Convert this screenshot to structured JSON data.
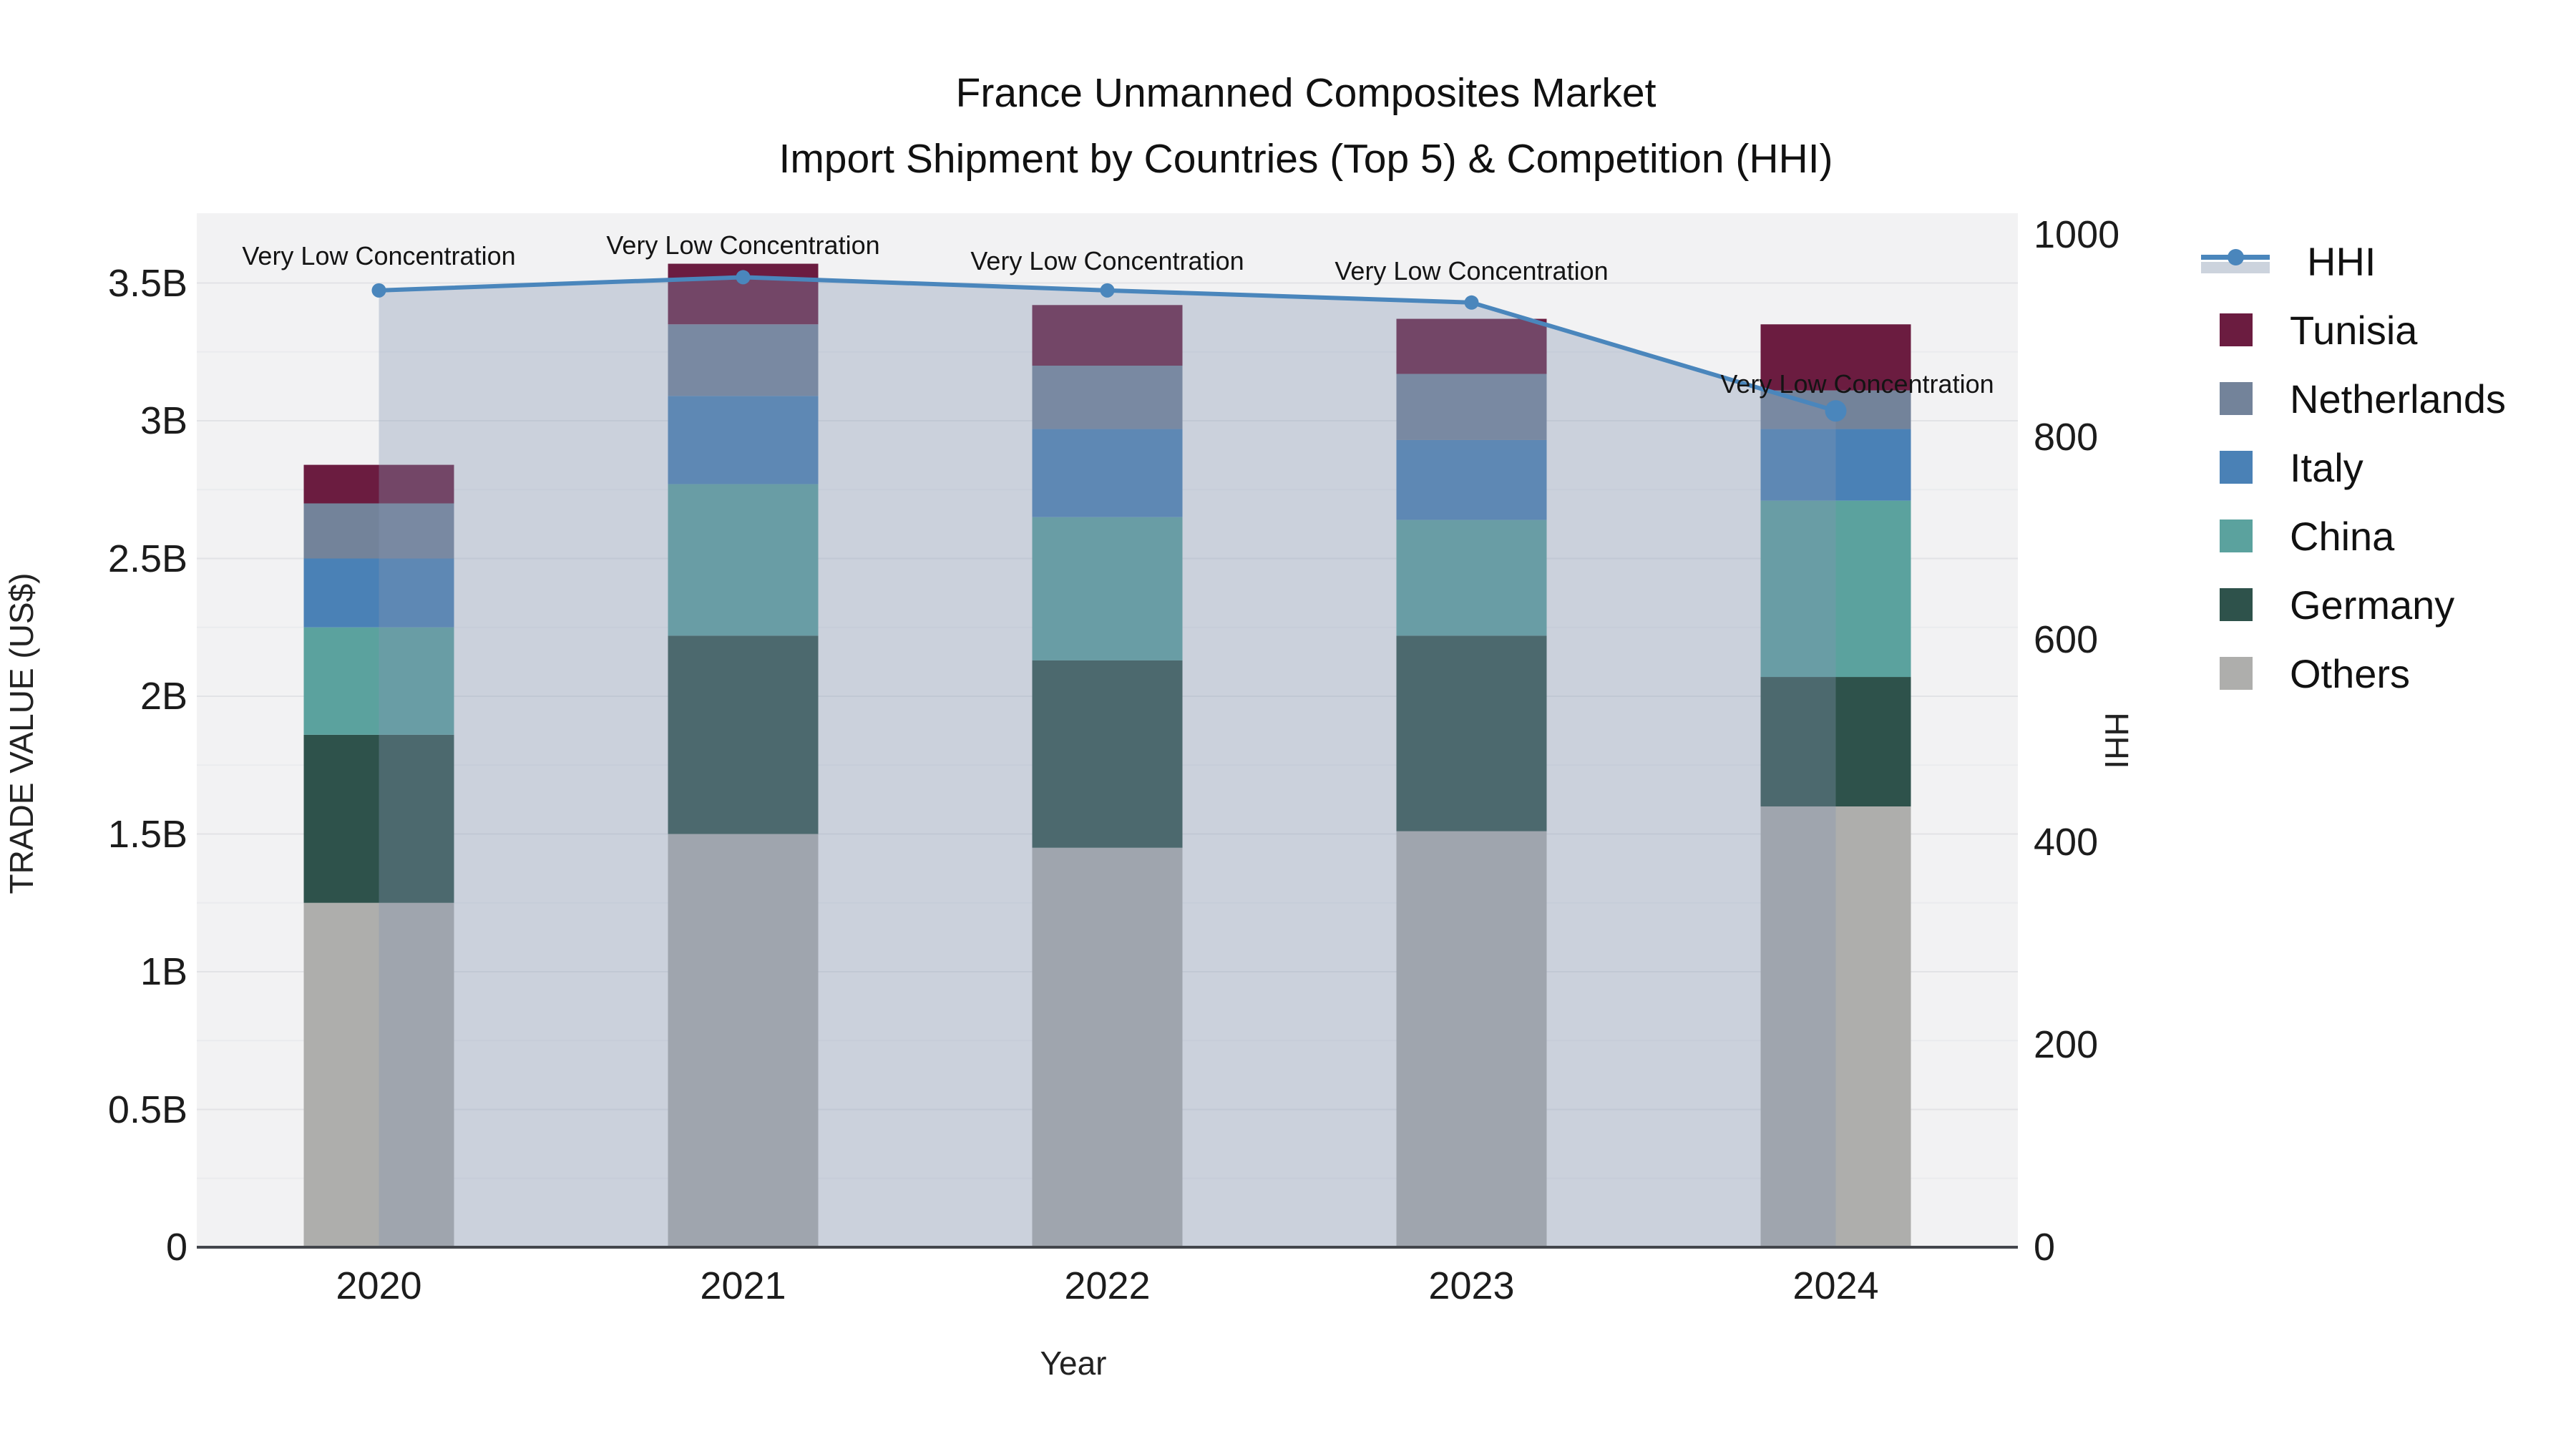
{
  "title": {
    "line1": "France Unmanned Composites Market",
    "line2": "Import Shipment by Countries (Top 5) & Competition (HHI)"
  },
  "axes": {
    "y_left": {
      "title": "TRADE VALUE (US$)",
      "ticks": [
        "0",
        "0.5B",
        "1B",
        "1.5B",
        "2B",
        "2.5B",
        "3B",
        "3.5B"
      ]
    },
    "y_right": {
      "title": "HHI",
      "ticks": [
        "0",
        "200",
        "400",
        "600",
        "800",
        "1000"
      ]
    },
    "x": {
      "title": "Year",
      "ticks": [
        "2020",
        "2021",
        "2022",
        "2023",
        "2024"
      ]
    }
  },
  "legend": {
    "items": [
      {
        "label": "HHI",
        "type": "line",
        "color": "#4a86bc",
        "band_color": "#ccd3dd"
      },
      {
        "label": "Tunisia",
        "type": "swatch",
        "color": "#6b1c40"
      },
      {
        "label": "Netherlands",
        "type": "swatch",
        "color": "#73839a"
      },
      {
        "label": "Italy",
        "type": "swatch",
        "color": "#4a81b6"
      },
      {
        "label": "China",
        "type": "swatch",
        "color": "#5ba29e"
      },
      {
        "label": "Germany",
        "type": "swatch",
        "color": "#2e524b"
      },
      {
        "label": "Others",
        "type": "swatch",
        "color": "#aeaeac"
      }
    ]
  },
  "annotations": [
    {
      "text": "Very Low Concentration"
    },
    {
      "text": "Very Low Concentration"
    },
    {
      "text": "Very Low Concentration"
    },
    {
      "text": "Very Low Concentration"
    },
    {
      "text": "Very Low Concentration"
    }
  ],
  "chart_data": {
    "type": "combo_stacked_bar_line",
    "title": "France Unmanned Composites Market — Import Shipment by Countries (Top 5) & Competition (HHI)",
    "categories": [
      "2020",
      "2021",
      "2022",
      "2023",
      "2024"
    ],
    "unit": "billion US$",
    "series": [
      {
        "name": "Others",
        "color": "#aeaeac",
        "values": [
          1.25,
          1.5,
          1.45,
          1.51,
          1.6
        ]
      },
      {
        "name": "Germany",
        "color": "#2e524b",
        "values": [
          0.61,
          0.72,
          0.68,
          0.71,
          0.47
        ]
      },
      {
        "name": "China",
        "color": "#5ba29e",
        "values": [
          0.39,
          0.55,
          0.52,
          0.42,
          0.64
        ]
      },
      {
        "name": "Italy",
        "color": "#4a81b6",
        "values": [
          0.25,
          0.32,
          0.32,
          0.29,
          0.26
        ]
      },
      {
        "name": "Netherlands",
        "color": "#73839a",
        "values": [
          0.2,
          0.26,
          0.23,
          0.24,
          0.14
        ]
      },
      {
        "name": "Tunisia",
        "color": "#6b1c40",
        "values": [
          0.14,
          0.22,
          0.22,
          0.2,
          0.24
        ]
      }
    ],
    "bar_totals": [
      2.84,
      3.57,
      3.42,
      3.37,
      3.35
    ],
    "line_series": {
      "name": "HHI",
      "axis": "right",
      "color": "#4a86bc",
      "area_fill_color": "#8596b1",
      "area_fill_opacity": 0.35,
      "values": [
        945,
        958,
        945,
        933,
        826
      ]
    },
    "xlabel": "Year",
    "ylabel_left": "TRADE VALUE (US$)",
    "ylabel_right": "HHI",
    "y_left_range": [
      0,
      3.76
    ],
    "y_right_range": [
      0,
      1000
    ],
    "grid": true,
    "legend_position": "right",
    "plot_bg_color": "#f2f2f3",
    "annotation_text": "Very Low Concentration"
  }
}
